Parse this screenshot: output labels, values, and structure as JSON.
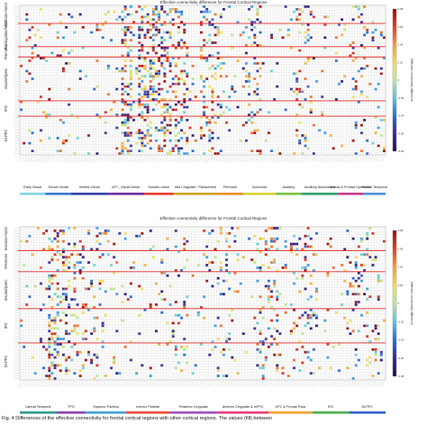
{
  "panels": [
    {
      "title": "Effective connectivity difference for Frontal Cortical Regions",
      "row_groups": [
        "Somato-motor",
        "Pacingulate/MCC",
        "Premotor",
        "Insula/Operc",
        "IFG",
        "DLPFC"
      ],
      "colorbar_label": "Effective connectivity difference",
      "colorbar_ticks": [
        "0.08",
        "0.06",
        "0.04",
        "0.02",
        "0",
        "-0.02",
        "-0.04",
        "-0.06",
        "-0.08"
      ],
      "col_groups": [
        {
          "label": "Early Visual",
          "color": "#7fd3e6"
        },
        {
          "label": "Dorsal Visual",
          "color": "#3a78c8"
        },
        {
          "label": "Ventral Visual",
          "color": "#2f3fa8"
        },
        {
          "label": "MT+_Visual Areas",
          "color": "#6a2fa0"
        },
        {
          "label": "Somato-motor",
          "color": "#e23a2a"
        },
        {
          "label": "Mid Cingulate / Paracentral",
          "color": "#c9a020"
        },
        {
          "label": "Premotor",
          "color": "#e88a2a"
        },
        {
          "label": "Opercular",
          "color": "#d9d030"
        },
        {
          "label": "Auditory",
          "color": "#7ac043"
        },
        {
          "label": "Auditory Association",
          "color": "#2fa06a"
        },
        {
          "label": "Insula & Frontal Opercular",
          "color": "#c83a8a"
        },
        {
          "label": "Medial Temporal",
          "color": "#4a90d0"
        }
      ]
    },
    {
      "title": "Effective connectivity difference for Frontal Cortical Regions",
      "row_groups": [
        "Somato-motor",
        "Premotor",
        "Insula/Operc",
        "IFG",
        "DLPFC"
      ],
      "colorbar_label": "Effective connectivity difference",
      "colorbar_ticks": [
        "0.08",
        "0.06",
        "0.04",
        "0.02",
        "0",
        "-0.02",
        "-0.04",
        "-0.06",
        "-0.08"
      ],
      "col_groups": [
        {
          "label": "Lateral Temporal",
          "color": "#2a9a8a"
        },
        {
          "label": "TPO",
          "color": "#8a3fb0"
        },
        {
          "label": "Superior Parietal",
          "color": "#3fa0d8"
        },
        {
          "label": "Inferior Parietal",
          "color": "#e84a3a"
        },
        {
          "label": "Posterior Cingulate",
          "color": "#9a50c0"
        },
        {
          "label": "Anterior Cingulate & mPFC",
          "color": "#e83a7a"
        },
        {
          "label": "OFC & Frontal Polar",
          "color": "#f0a030"
        },
        {
          "label": "IFG",
          "color": "#4ab04a"
        },
        {
          "label": "DLPFC",
          "color": "#3060c0"
        }
      ]
    }
  ],
  "caption": "Fig. 4  Differences of the effective connectivity for frontal cortical regions with other cortical regions. The values (fill) between"
}
